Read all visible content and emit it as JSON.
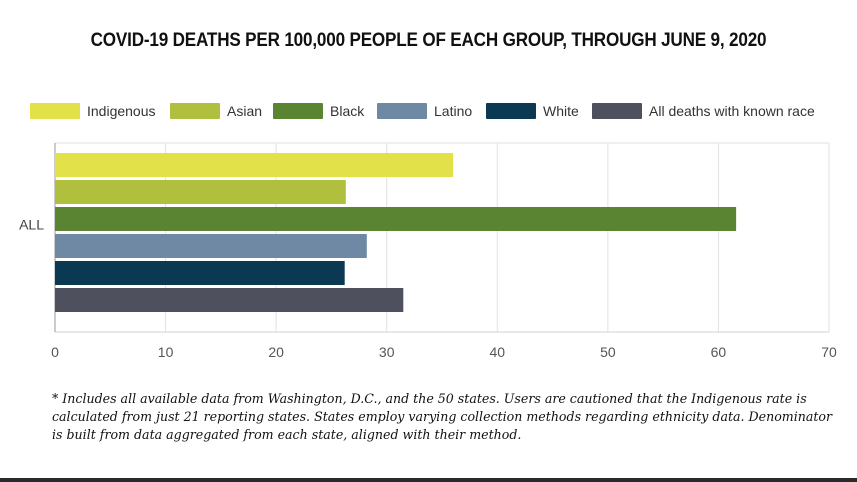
{
  "title": "COVID-19 DEATHS PER 100,000 PEOPLE OF EACH GROUP, THROUGH JUNE 9, 2020",
  "chart_data": {
    "type": "bar",
    "orientation": "horizontal",
    "categories": [
      "ALL"
    ],
    "series": [
      {
        "name": "Indigenous",
        "color": "#e3e14a",
        "values": [
          36
        ]
      },
      {
        "name": "Asian",
        "color": "#b0c03e",
        "values": [
          26.3
        ]
      },
      {
        "name": "Black",
        "color": "#5a8432",
        "values": [
          61.6
        ]
      },
      {
        "name": "Latino",
        "color": "#6f88a3",
        "values": [
          28.2
        ]
      },
      {
        "name": "White",
        "color": "#0b3954",
        "values": [
          26.2
        ]
      },
      {
        "name": "All deaths with known race",
        "color": "#4f505e",
        "values": [
          31.5
        ]
      }
    ],
    "xlim": [
      0,
      70
    ],
    "xticks": [
      0,
      10,
      20,
      30,
      40,
      50,
      60,
      70
    ],
    "xlabel": "",
    "ylabel": "",
    "grid": true,
    "legend": "top"
  },
  "footnote": "* Includes all available data from Washington, D.C., and the 50 states. Users are cautioned that the Indigenous rate is calculated from just 21 reporting states. States employ varying collection methods regarding ethnicity data. Denominator is built from data aggregated from each state, aligned with their method."
}
